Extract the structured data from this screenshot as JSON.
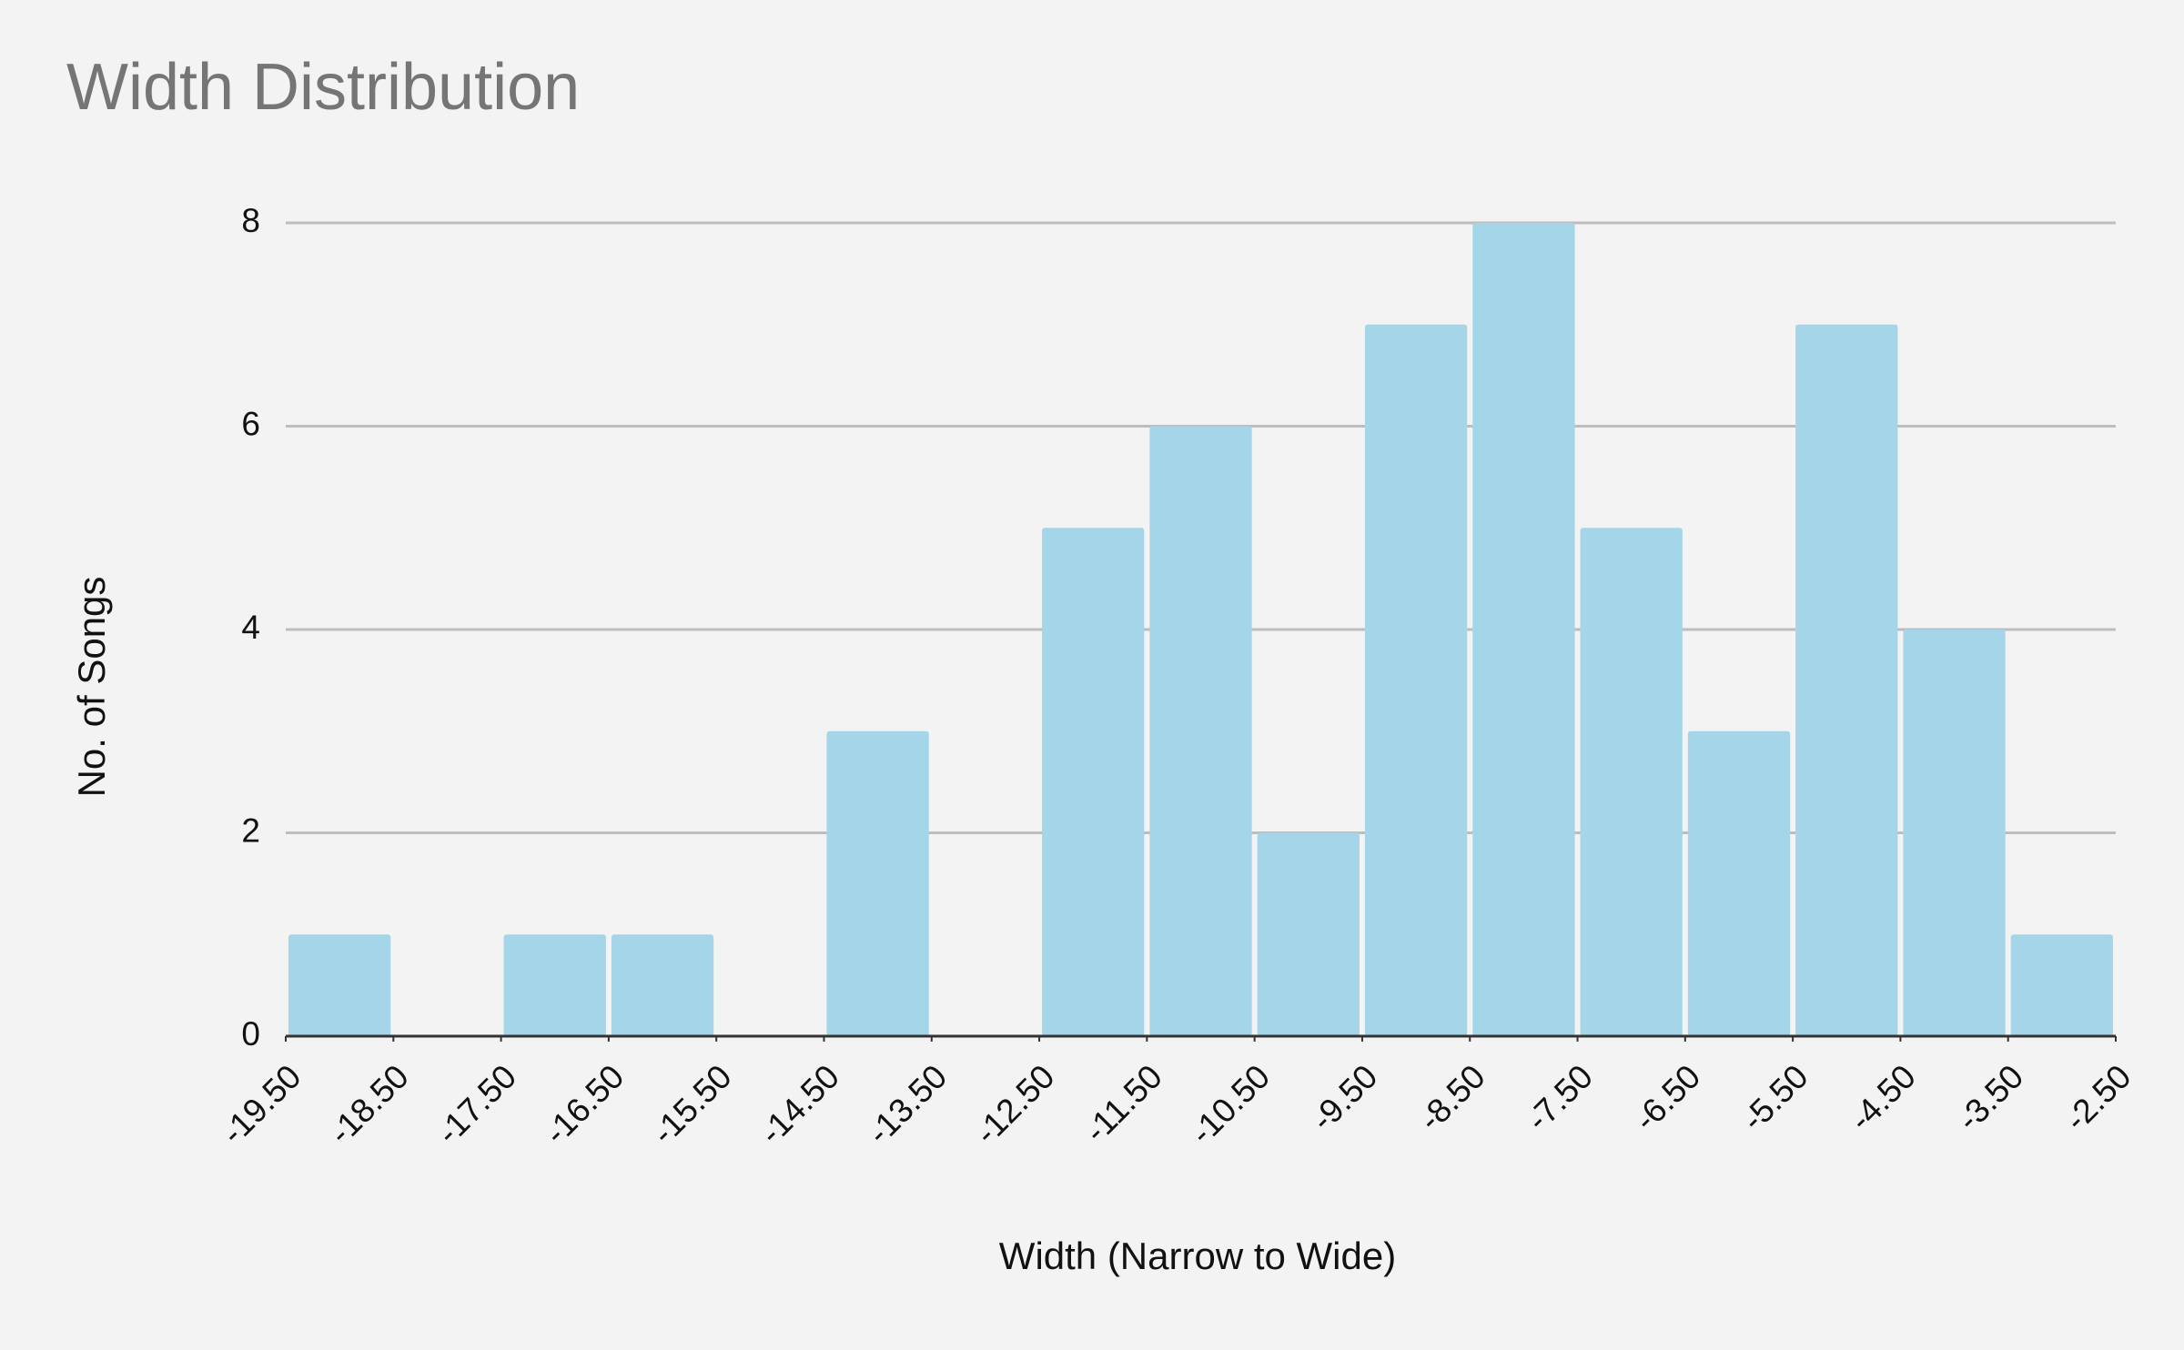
{
  "chart_data": {
    "type": "histogram",
    "title": "Width Distribution",
    "x_label": "Width (Narrow to Wide)",
    "y_label": "No. of Songs",
    "bins": [
      -19.5,
      -18.5,
      -17.5,
      -16.5,
      -15.5,
      -14.5,
      -13.5,
      -12.5,
      -11.5,
      -10.5,
      -9.5,
      -8.5,
      -7.5,
      -6.5,
      -5.5,
      -4.5,
      -3.5,
      -2.5
    ],
    "values": [
      1,
      0,
      1,
      1,
      0,
      3,
      0,
      5,
      6,
      2,
      7,
      8,
      5,
      3,
      7,
      4,
      1
    ],
    "color": "#a5d5e8",
    "xlim": [
      -19.5,
      -2.5
    ],
    "xticks": [
      {
        "value": -19.5,
        "label": "-19.50"
      },
      {
        "value": -18.5,
        "label": "-18.50"
      },
      {
        "value": -17.5,
        "label": "-17.50"
      },
      {
        "value": -16.5,
        "label": "-16.50"
      },
      {
        "value": -15.5,
        "label": "-15.50"
      },
      {
        "value": -14.5,
        "label": "-14.50"
      },
      {
        "value": -13.5,
        "label": "-13.50"
      },
      {
        "value": -12.5,
        "label": "-12.50"
      },
      {
        "value": -11.5,
        "label": "-11.50"
      },
      {
        "value": -10.5,
        "label": "-10.50"
      },
      {
        "value": -9.5,
        "label": "-9.50"
      },
      {
        "value": -8.5,
        "label": "-8.50"
      },
      {
        "value": -7.5,
        "label": "-7.50"
      },
      {
        "value": -6.5,
        "label": "-6.50"
      },
      {
        "value": -5.5,
        "label": "-5.50"
      },
      {
        "value": -4.5,
        "label": "-4.50"
      },
      {
        "value": -3.5,
        "label": "-3.50"
      },
      {
        "value": -2.5,
        "label": "-2.50"
      }
    ],
    "ylim": [
      0,
      8
    ],
    "yticks": [
      0,
      2,
      4,
      6,
      8
    ],
    "grid": true
  }
}
